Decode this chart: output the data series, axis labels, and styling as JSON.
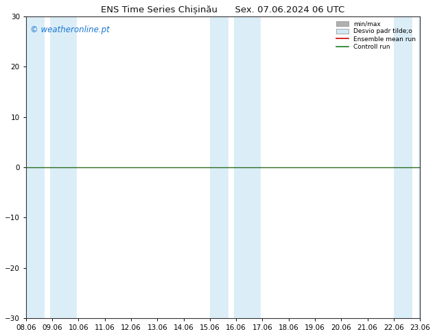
{
  "title": "ENS Time Series Chișinău      Sex. 07.06.2024 06 UTC",
  "watermark": "© weatheronline.pt",
  "watermark_color": "#1a75d2",
  "ylim": [
    -30,
    30
  ],
  "yticks": [
    -30,
    -20,
    -10,
    0,
    10,
    20,
    30
  ],
  "xtick_labels": [
    "08.06",
    "09.06",
    "10.06",
    "11.06",
    "12.06",
    "13.06",
    "14.06",
    "15.06",
    "16.06",
    "17.06",
    "18.06",
    "19.06",
    "20.06",
    "21.06",
    "22.06",
    "23.06"
  ],
  "xlim": [
    0,
    15
  ],
  "shaded_bands": [
    {
      "xstart": 0.0,
      "xend": 0.7,
      "color": "#dbeef8"
    },
    {
      "xstart": 0.93,
      "xend": 1.93,
      "color": "#dbeef8"
    },
    {
      "xstart": 7.0,
      "xend": 7.7,
      "color": "#dbeef8"
    },
    {
      "xstart": 7.93,
      "xend": 8.93,
      "color": "#dbeef8"
    },
    {
      "xstart": 14.0,
      "xend": 14.7,
      "color": "#dbeef8"
    },
    {
      "xstart": 14.93,
      "xend": 15.0,
      "color": "#dbeef8"
    }
  ],
  "hline_y": 0,
  "hline_color": "#2d6a1f",
  "hline_linewidth": 1.0,
  "legend_items": [
    {
      "label": "min/max",
      "color": "#b0b0b0",
      "type": "fill"
    },
    {
      "label": "Desvio padr tilde;o",
      "color": "#d0e8f4",
      "type": "fill"
    },
    {
      "label": "Ensemble mean run",
      "color": "#cc0000",
      "type": "line"
    },
    {
      "label": "Controll run",
      "color": "#1a7a1a",
      "type": "line"
    }
  ],
  "background_color": "#ffffff",
  "plot_bg_color": "#ffffff",
  "title_fontsize": 9.5,
  "tick_fontsize": 7.5,
  "watermark_fontsize": 8.5
}
